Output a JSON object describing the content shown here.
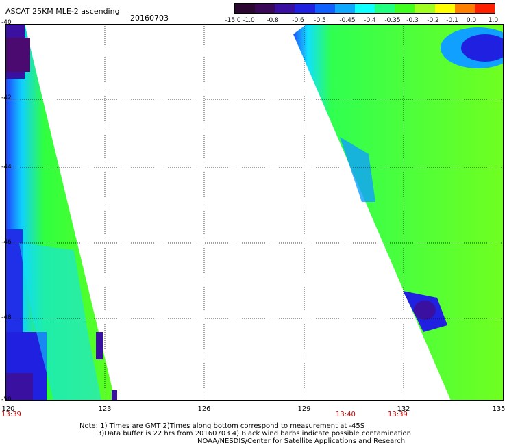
{
  "header": {
    "title": "ASCAT 25KM MLE-2 ascending",
    "date": "20160703"
  },
  "colorbar": {
    "labels": [
      "-15.0",
      "-1.0",
      "-0.8",
      "-0.6",
      "-0.5",
      "-0.45",
      "-0.4",
      "-0.35",
      "-0.3",
      "-0.2",
      "-0.1",
      "0.0",
      "1.0"
    ],
    "colors": [
      "#2a0830",
      "#3a0a58",
      "#3a10a0",
      "#2020e0",
      "#1060ff",
      "#10a8ff",
      "#10ffff",
      "#20ff80",
      "#40ff20",
      "#a0ff20",
      "#ffff00",
      "#ff8000",
      "#ff2000"
    ]
  },
  "axes": {
    "x_ticks": [
      "120",
      "123",
      "126",
      "129",
      "132",
      "135"
    ],
    "y_ticks": [
      "-40",
      "-42",
      "-44",
      "-46",
      "-48",
      "-50"
    ]
  },
  "times": {
    "left": "13:39",
    "mid1": "13:40",
    "mid2": "13:39"
  },
  "notes": {
    "line1": "Note: 1) Times are GMT 2)Times along bottom correspond to measurement at -45S",
    "line2": "3)Data buffer is 22 hrs from 20160703 4) Black wind barbs indicate possible contamination",
    "line3": "NOAA/NESDIS/Center for Satellite Applications and Research"
  }
}
